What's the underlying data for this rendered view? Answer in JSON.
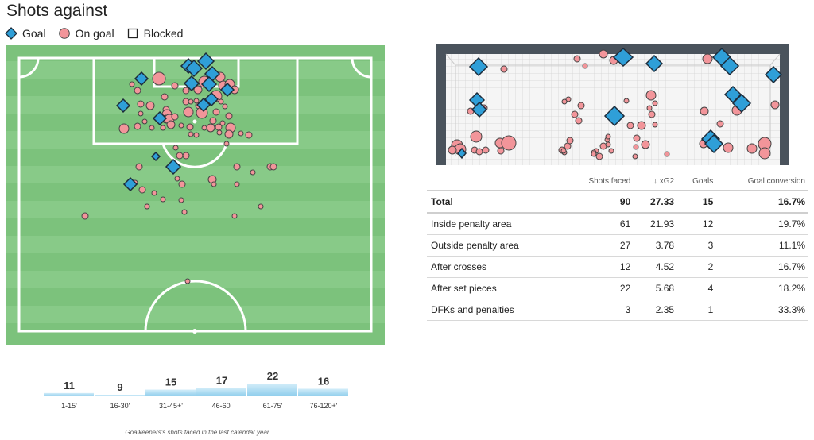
{
  "title": "Shots against",
  "legend": [
    {
      "label": "Goal",
      "icon": "diamond-icon"
    },
    {
      "label": "On goal",
      "icon": "circle-icon"
    },
    {
      "label": "Blocked",
      "icon": "square-icon"
    }
  ],
  "colors": {
    "goal": "#2f9fd8",
    "on_goal": "#f2959a",
    "pitch": "#7cc27c",
    "pitch_stripe": "#88ca88",
    "bar": "#a8d8f0"
  },
  "table": {
    "headers": [
      "",
      "Shots faced",
      "↓ xG2",
      "Goals",
      "Goal conversion"
    ],
    "rows": [
      [
        "Total",
        "90",
        "27.33",
        "15",
        "16.7%"
      ],
      [
        "Inside penalty area",
        "61",
        "21.93",
        "12",
        "19.7%"
      ],
      [
        "Outside penalty area",
        "27",
        "3.78",
        "3",
        "11.1%"
      ],
      [
        "After crosses",
        "12",
        "4.52",
        "2",
        "16.7%"
      ],
      [
        "After set pieces",
        "22",
        "5.68",
        "4",
        "18.2%"
      ],
      [
        "DFKs and penalties",
        "3",
        "2.35",
        "1",
        "33.3%"
      ]
    ]
  },
  "caption": "Goalkeepers's shots faced in the last calendar year",
  "chart_data": [
    {
      "type": "bar",
      "categories": [
        "1-15'",
        "16-30'",
        "31-45+'",
        "46-60'",
        "61-75'",
        "76-120+'"
      ],
      "values": [
        11,
        9,
        15,
        17,
        22,
        16
      ]
    }
  ]
}
